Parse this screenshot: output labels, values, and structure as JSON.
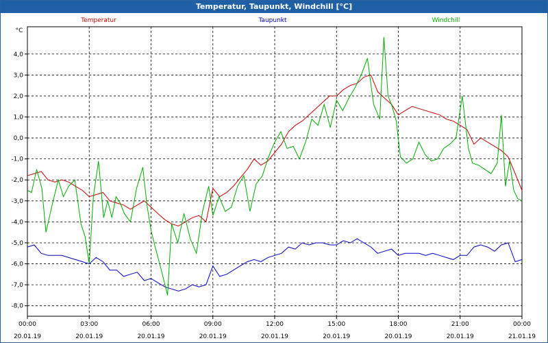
{
  "window": {
    "title": "Temperatur, Taupunkt, Windchill [°C]"
  },
  "chart_data": {
    "type": "line",
    "title": "Temperatur, Taupunkt, Windchill [°C]",
    "ylabel": "°C",
    "xlabel": "",
    "ylim": [
      -8.5,
      5.3
    ],
    "xlim": [
      0,
      24
    ],
    "grid": true,
    "legend_placement": "top",
    "y_ticks": [
      "4,0",
      "3,0",
      "2,0",
      "1,0",
      "0,0",
      "-1,0",
      "-2,0",
      "-3,0",
      "-4,0",
      "-5,0",
      "-6,0",
      "-7,0",
      "-8,0"
    ],
    "x_ticks": [
      {
        "time": "00:00",
        "date": "20.01.19"
      },
      {
        "time": "03:00",
        "date": "20.01.19"
      },
      {
        "time": "06:00",
        "date": "20.01.19"
      },
      {
        "time": "09:00",
        "date": "20.01.19"
      },
      {
        "time": "12:00",
        "date": "20.01.19"
      },
      {
        "time": "15:00",
        "date": "20.01.19"
      },
      {
        "time": "18:00",
        "date": "20.01.19"
      },
      {
        "time": "21:00",
        "date": "20.01.19"
      },
      {
        "time": "00:00",
        "date": "21.01.19"
      }
    ],
    "series": [
      {
        "name": "Temperatur",
        "color": "#cc0000",
        "x": [
          0.0,
          0.33,
          0.67,
          1.0,
          1.33,
          1.67,
          2.0,
          2.33,
          2.67,
          3.0,
          3.33,
          3.67,
          4.0,
          4.33,
          4.67,
          5.0,
          5.33,
          5.67,
          6.0,
          6.33,
          6.67,
          7.0,
          7.33,
          7.67,
          8.0,
          8.33,
          8.67,
          9.0,
          9.33,
          9.67,
          10.0,
          10.33,
          10.67,
          11.0,
          11.33,
          11.67,
          12.0,
          12.33,
          12.67,
          13.0,
          13.33,
          13.67,
          14.0,
          14.33,
          14.67,
          15.0,
          15.33,
          15.67,
          16.0,
          16.33,
          16.67,
          17.0,
          17.33,
          17.67,
          18.0,
          18.33,
          18.67,
          19.0,
          19.33,
          19.67,
          20.0,
          20.33,
          20.67,
          21.0,
          21.33,
          21.67,
          22.0,
          22.33,
          22.67,
          23.0,
          23.33,
          23.67,
          24.0
        ],
        "y": [
          -1.8,
          -1.7,
          -1.6,
          -2.0,
          -2.1,
          -2.0,
          -2.1,
          -2.3,
          -2.5,
          -2.8,
          -2.7,
          -2.6,
          -3.0,
          -3.1,
          -3.2,
          -3.4,
          -3.2,
          -3.0,
          -3.3,
          -3.6,
          -3.9,
          -4.1,
          -4.2,
          -4.0,
          -3.8,
          -3.7,
          -4.0,
          -2.4,
          -2.8,
          -2.6,
          -2.3,
          -1.9,
          -1.5,
          -1.0,
          -1.3,
          -1.1,
          -0.7,
          -0.3,
          0.3,
          0.6,
          0.8,
          1.1,
          1.4,
          1.7,
          2.0,
          2.0,
          2.3,
          2.5,
          2.6,
          2.9,
          3.0,
          2.2,
          1.9,
          1.6,
          1.1,
          1.3,
          1.5,
          1.4,
          1.3,
          1.2,
          1.1,
          0.9,
          0.8,
          0.6,
          0.4,
          -0.3,
          0.0,
          -0.2,
          -0.4,
          -0.6,
          -0.9,
          -1.7,
          -2.5
        ]
      },
      {
        "name": "Taupunkt",
        "color": "#0000cc",
        "x": [
          0.0,
          0.33,
          0.67,
          1.0,
          1.33,
          1.67,
          2.0,
          2.33,
          2.67,
          3.0,
          3.33,
          3.67,
          4.0,
          4.33,
          4.67,
          5.0,
          5.33,
          5.67,
          6.0,
          6.33,
          6.67,
          7.0,
          7.33,
          7.67,
          8.0,
          8.33,
          8.67,
          9.0,
          9.33,
          9.67,
          10.0,
          10.33,
          10.67,
          11.0,
          11.33,
          11.67,
          12.0,
          12.33,
          12.67,
          13.0,
          13.33,
          13.67,
          14.0,
          14.33,
          14.67,
          15.0,
          15.33,
          15.67,
          16.0,
          16.33,
          16.67,
          17.0,
          17.33,
          17.67,
          18.0,
          18.33,
          18.67,
          19.0,
          19.33,
          19.67,
          20.0,
          20.33,
          20.67,
          21.0,
          21.33,
          21.67,
          22.0,
          22.33,
          22.67,
          23.0,
          23.33,
          23.67,
          24.0
        ],
        "y": [
          -5.2,
          -5.1,
          -5.5,
          -5.6,
          -5.6,
          -5.6,
          -5.7,
          -5.8,
          -5.9,
          -6.0,
          -5.7,
          -5.9,
          -6.3,
          -6.3,
          -6.6,
          -6.5,
          -6.4,
          -6.8,
          -6.7,
          -6.9,
          -7.1,
          -7.2,
          -7.3,
          -7.2,
          -7.0,
          -7.1,
          -7.0,
          -6.1,
          -6.6,
          -6.5,
          -6.3,
          -6.1,
          -5.9,
          -5.8,
          -5.9,
          -5.7,
          -5.6,
          -5.5,
          -5.2,
          -5.3,
          -5.0,
          -5.1,
          -5.0,
          -5.0,
          -5.1,
          -5.1,
          -4.9,
          -5.0,
          -4.8,
          -5.0,
          -5.2,
          -5.5,
          -5.4,
          -5.3,
          -5.6,
          -5.5,
          -5.5,
          -5.5,
          -5.6,
          -5.5,
          -5.6,
          -5.7,
          -5.8,
          -5.6,
          -5.6,
          -5.2,
          -5.1,
          -5.2,
          -5.4,
          -5.1,
          -5.0,
          -5.9,
          -5.8
        ]
      },
      {
        "name": "Windchill",
        "color": "#00aa00",
        "x": [
          0.0,
          0.2,
          0.45,
          0.7,
          0.9,
          1.2,
          1.5,
          1.75,
          2.0,
          2.3,
          2.6,
          2.8,
          3.0,
          3.2,
          3.45,
          3.7,
          3.9,
          4.1,
          4.3,
          4.5,
          4.7,
          5.0,
          5.3,
          5.6,
          5.8,
          6.0,
          6.2,
          6.5,
          6.8,
          7.0,
          7.3,
          7.6,
          7.9,
          8.2,
          8.5,
          8.8,
          9.0,
          9.3,
          9.6,
          9.9,
          10.2,
          10.5,
          10.8,
          11.1,
          11.4,
          11.7,
          12.0,
          12.3,
          12.6,
          12.9,
          13.2,
          13.5,
          13.8,
          14.1,
          14.4,
          14.7,
          15.0,
          15.3,
          15.6,
          15.9,
          16.2,
          16.5,
          16.8,
          17.1,
          17.3,
          17.5,
          17.7,
          17.9,
          18.1,
          18.4,
          18.7,
          19.0,
          19.3,
          19.6,
          19.9,
          20.2,
          20.5,
          20.8,
          21.1,
          21.4,
          21.6,
          21.9,
          22.2,
          22.5,
          22.8,
          23.0,
          23.2,
          23.4,
          23.6,
          23.8,
          24.0
        ],
        "y": [
          -2.5,
          -2.6,
          -1.5,
          -2.4,
          -4.5,
          -3.2,
          -2.0,
          -2.8,
          -2.3,
          -2.0,
          -4.1,
          -4.7,
          -6.0,
          -2.8,
          -1.1,
          -3.8,
          -3.0,
          -3.8,
          -2.8,
          -3.1,
          -3.6,
          -4.0,
          -2.4,
          -1.4,
          -3.2,
          -4.4,
          -5.2,
          -6.3,
          -7.5,
          -4.1,
          -5.0,
          -3.6,
          -4.8,
          -5.5,
          -3.5,
          -2.3,
          -3.7,
          -2.8,
          -3.5,
          -3.3,
          -2.3,
          -1.8,
          -3.5,
          -2.2,
          -1.8,
          -0.9,
          -0.2,
          0.3,
          -0.5,
          -0.4,
          -1.0,
          -0.2,
          0.9,
          0.6,
          1.6,
          0.5,
          1.8,
          1.3,
          1.9,
          2.4,
          3.0,
          3.8,
          1.6,
          0.9,
          4.8,
          2.0,
          1.5,
          0.8,
          -0.9,
          -1.2,
          -1.0,
          -0.2,
          -0.8,
          -1.1,
          -1.0,
          -0.5,
          -0.3,
          0.0,
          2.0,
          -0.5,
          -1.2,
          -1.3,
          -1.5,
          -1.7,
          -1.2,
          1.1,
          -2.3,
          -1.1,
          -2.5,
          -2.9,
          -3.0
        ]
      }
    ]
  }
}
